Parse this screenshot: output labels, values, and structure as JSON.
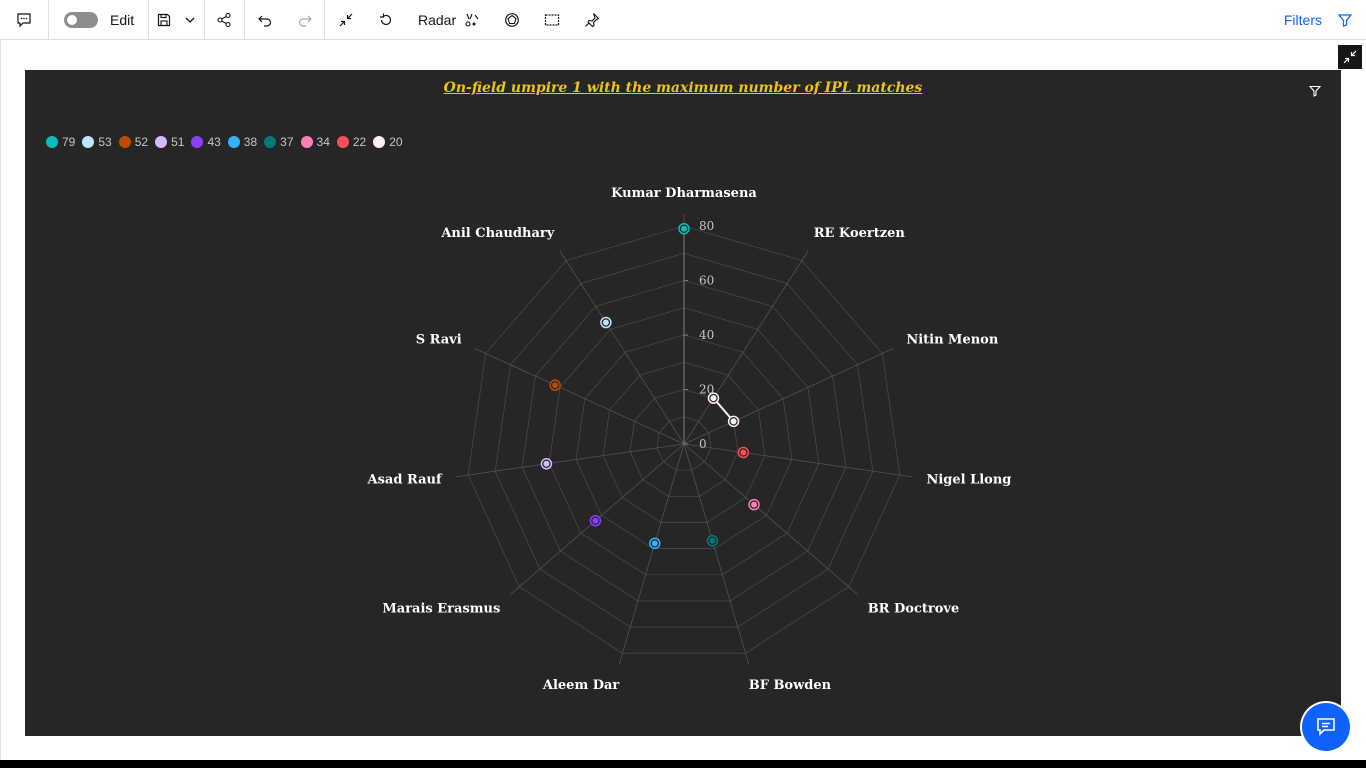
{
  "toolbar": {
    "edit_label": "Edit",
    "chart_type_label": "Radar",
    "filters_label": "Filters"
  },
  "colors": {
    "accent": "#0f62fe",
    "panel_bg": "#262626",
    "title": "#f1c21b"
  },
  "icons": [
    "comment-icon",
    "toggle",
    "save-icon",
    "chevron-down-icon",
    "share-icon",
    "undo-icon",
    "redo-icon",
    "collapse-icon",
    "reset-icon",
    "chart-type-icon",
    "explore-icon",
    "select-area-icon",
    "pin-icon",
    "filter-icon",
    "minimize-icon",
    "chat-icon"
  ],
  "chart_data": {
    "type": "radar",
    "title": "On-field umpire 1 with the maximum number of IPL matches",
    "categories": [
      "Kumar Dharmasena",
      "RE Koertzen",
      "Nitin Menon",
      "Nigel Llong",
      "BR Doctrove",
      "BF Bowden",
      "Aleem Dar",
      "Marais Erasmus",
      "Asad Rauf",
      "S Ravi",
      "Anil Chaudhary"
    ],
    "radial_ticks": [
      "0",
      "20",
      "40",
      "60",
      "80"
    ],
    "rmax": 80,
    "legend_position": "top-left",
    "series": [
      {
        "name": "79",
        "color": "#08bdba",
        "points": [
          {
            "category": "Kumar Dharmasena",
            "value": 79
          }
        ]
      },
      {
        "name": "53",
        "color": "#bae6ff",
        "points": [
          {
            "category": "Anil Chaudhary",
            "value": 53
          }
        ]
      },
      {
        "name": "52",
        "color": "#ba4e00",
        "points": [
          {
            "category": "S Ravi",
            "value": 52
          }
        ]
      },
      {
        "name": "51",
        "color": "#d4bbff",
        "points": [
          {
            "category": "Asad Rauf",
            "value": 51
          }
        ]
      },
      {
        "name": "43",
        "color": "#8a3ffc",
        "points": [
          {
            "category": "Marais Erasmus",
            "value": 43
          }
        ]
      },
      {
        "name": "38",
        "color": "#33b1ff",
        "points": [
          {
            "category": "Aleem Dar",
            "value": 38
          }
        ]
      },
      {
        "name": "37",
        "color": "#007d79",
        "points": [
          {
            "category": "BF Bowden",
            "value": 37
          }
        ]
      },
      {
        "name": "34",
        "color": "#ff7eb6",
        "points": [
          {
            "category": "BR Doctrove",
            "value": 34
          }
        ]
      },
      {
        "name": "22",
        "color": "#fa4d56",
        "points": [
          {
            "category": "Nigel Llong",
            "value": 22
          }
        ]
      },
      {
        "name": "20",
        "color": "#fff1f1",
        "points": [
          {
            "category": "RE Koertzen",
            "value": 20
          },
          {
            "category": "Nitin Menon",
            "value": 20
          }
        ]
      }
    ]
  }
}
